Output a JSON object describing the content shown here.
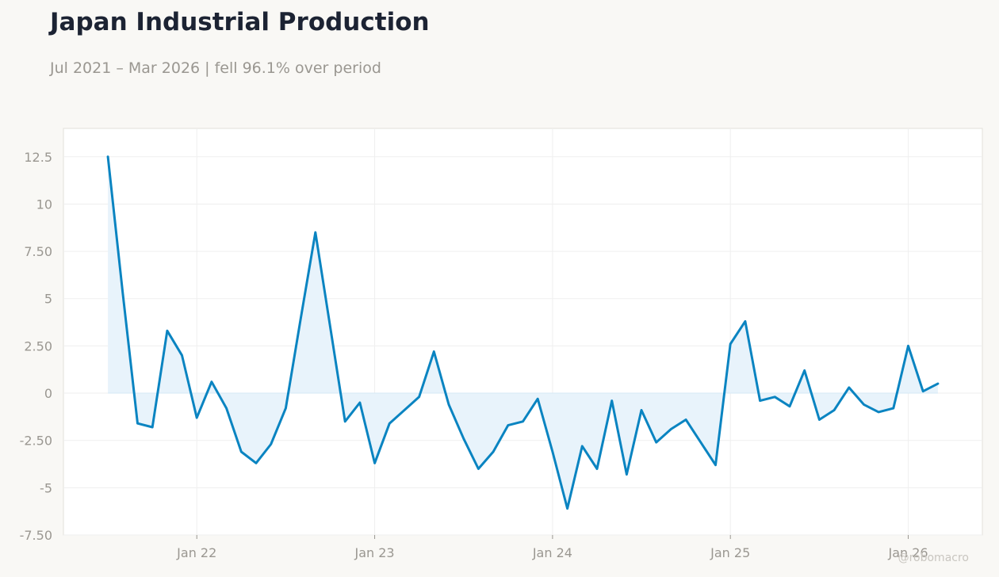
{
  "title": "Japan Industrial Production",
  "subtitle": "Jul 2021 – Mar 2026 | fell 96.1% over period",
  "watermark": "@robomacro",
  "colors": {
    "line": "#0a84c1",
    "fill": "#e8f3fb",
    "grid": "#efefef",
    "axis_text": "#9a9791",
    "background": "#f9f8f5",
    "plot_background": "#ffffff",
    "plot_border": "#e2e0da"
  },
  "chart_data": {
    "type": "area",
    "title": "Japan Industrial Production",
    "subtitle": "Jul 2021 – Mar 2026 | fell 96.1% over period",
    "xlabel": "",
    "ylabel": "",
    "ylim": [
      -7.5,
      14.0
    ],
    "xlim": [
      "2021-04",
      "2026-06"
    ],
    "grid": true,
    "y_ticks": [
      12.5,
      10,
      7.5,
      5,
      2.5,
      0,
      -2.5,
      -5,
      -7.5
    ],
    "y_tick_labels": [
      "12.5",
      "10",
      "7.50",
      "5",
      "2.50",
      "0",
      "-2.50",
      "-5",
      "-7.50"
    ],
    "x_ticks": [
      "2022-01",
      "2023-01",
      "2024-01",
      "2025-01",
      "2026-01"
    ],
    "x_tick_labels": [
      "Jan 22",
      "Jan 23",
      "Jan 24",
      "Jan 25",
      "Jan 26"
    ],
    "series": [
      {
        "x": [
          "2021-07",
          "2021-08",
          "2021-09",
          "2021-10",
          "2021-11",
          "2021-12",
          "2022-01",
          "2022-02",
          "2022-03",
          "2022-04",
          "2022-05",
          "2022-06",
          "2022-07",
          "2022-08",
          "2022-09",
          "2022-10",
          "2022-11",
          "2022-12",
          "2023-01",
          "2023-02",
          "2023-03",
          "2023-04",
          "2023-05",
          "2023-06",
          "2023-07",
          "2023-08",
          "2023-09",
          "2023-10",
          "2023-11",
          "2023-12",
          "2024-01",
          "2024-02",
          "2024-03",
          "2024-04",
          "2024-05",
          "2024-06",
          "2024-07",
          "2024-08",
          "2024-09",
          "2024-10",
          "2024-11",
          "2024-12",
          "2025-01",
          "2025-02",
          "2025-03",
          "2025-04",
          "2025-05",
          "2025-06",
          "2025-07",
          "2025-08",
          "2025-09",
          "2025-10",
          "2025-11",
          "2025-12",
          "2026-01",
          "2026-02",
          "2026-03"
        ],
        "values": [
          12.5,
          5.3,
          -1.6,
          -1.8,
          3.3,
          2.0,
          -1.3,
          0.6,
          -0.8,
          -3.1,
          -3.7,
          -2.7,
          -0.8,
          3.9,
          8.5,
          3.5,
          -1.5,
          -0.5,
          -3.7,
          -1.6,
          -0.9,
          -0.2,
          2.2,
          -0.6,
          -2.4,
          -4.0,
          -3.1,
          -1.7,
          -1.5,
          -0.3,
          -3.1,
          -6.1,
          -2.8,
          -4.0,
          -0.4,
          -4.3,
          -0.9,
          -2.6,
          -1.9,
          -1.4,
          -2.6,
          -3.8,
          2.6,
          3.8,
          -0.4,
          -0.2,
          -0.7,
          1.2,
          -1.4,
          -0.9,
          0.3,
          -0.6,
          -1.0,
          -0.8,
          2.5,
          0.1,
          0.5
        ]
      }
    ]
  }
}
